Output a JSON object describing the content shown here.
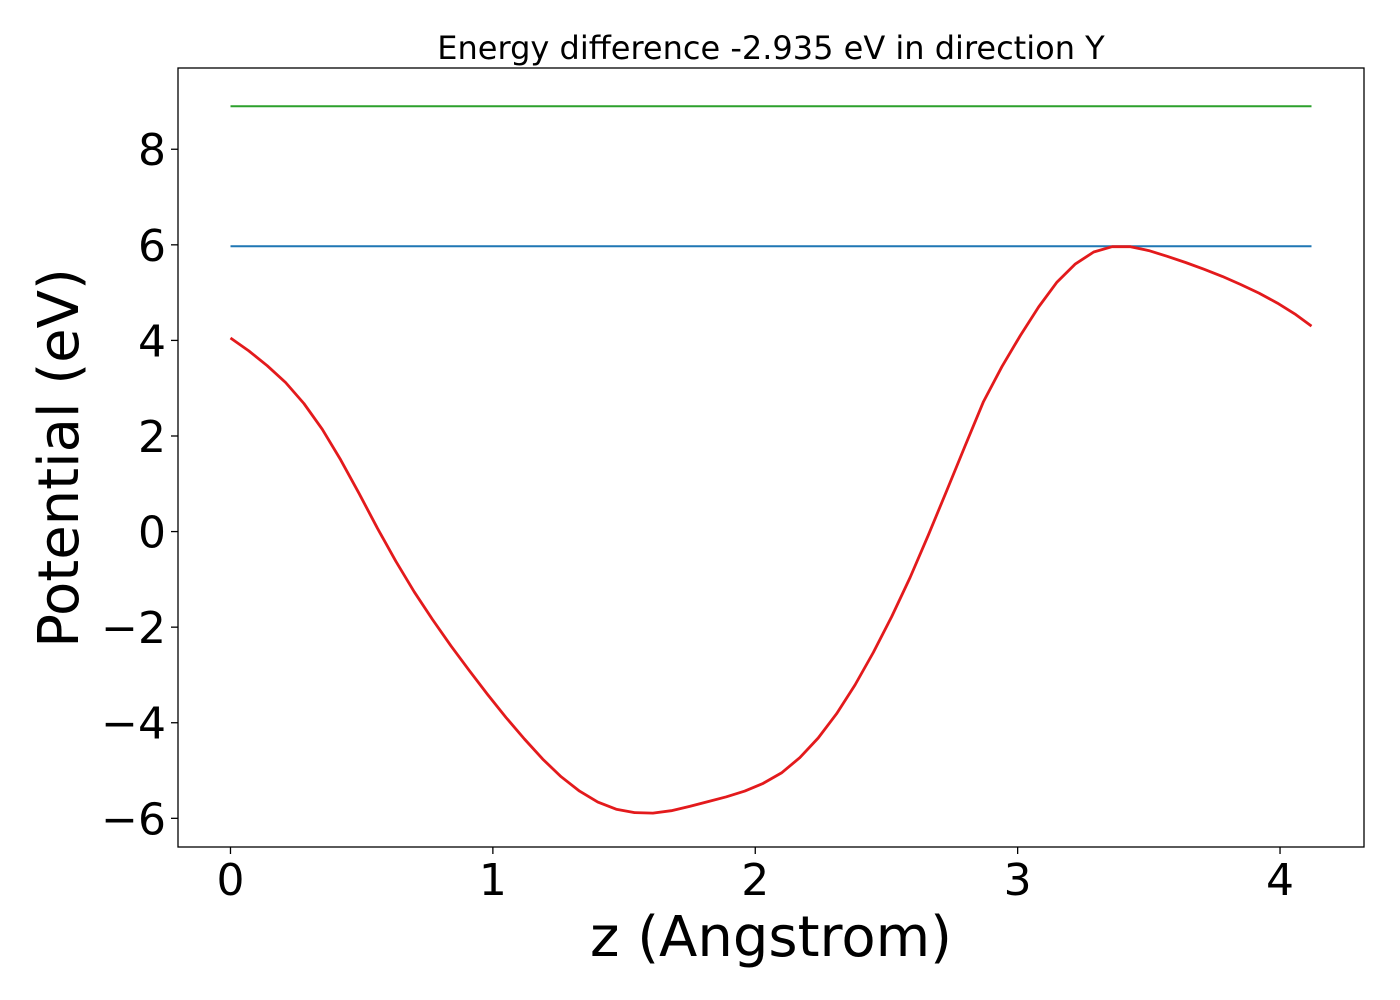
{
  "chart_data": {
    "type": "line",
    "title": "Energy difference -2.935 eV in direction Y",
    "xlabel": "z (Angstrom)",
    "ylabel": "Potential (eV)",
    "xlim": [
      -0.2,
      4.32
    ],
    "ylim": [
      -6.6,
      9.7
    ],
    "x_ticks": [
      0,
      1,
      2,
      3,
      4
    ],
    "x_tick_labels": [
      "0",
      "1",
      "2",
      "3",
      "4"
    ],
    "y_ticks": [
      -6,
      -4,
      -2,
      0,
      2,
      4,
      6,
      8
    ],
    "y_tick_labels": [
      "−6",
      "−4",
      "−2",
      "0",
      "2",
      "4",
      "6",
      "8"
    ],
    "grid": false,
    "series": [
      {
        "color": "#2ca02c",
        "x": [
          0,
          4.12
        ],
        "y": [
          8.9,
          8.9
        ]
      },
      {
        "color": "#1f77b4",
        "x": [
          0,
          4.12
        ],
        "y": [
          5.97,
          5.97
        ]
      },
      {
        "color": "#e31a1c",
        "x": [
          0,
          0.07,
          0.14,
          0.21,
          0.28,
          0.35,
          0.42,
          0.49,
          0.56,
          0.63,
          0.7,
          0.77,
          0.84,
          0.91,
          0.98,
          1.05,
          1.12,
          1.19,
          1.26,
          1.33,
          1.4,
          1.47,
          1.54,
          1.61,
          1.68,
          1.75,
          1.82,
          1.89,
          1.96,
          2.03,
          2.1,
          2.17,
          2.24,
          2.31,
          2.38,
          2.45,
          2.52,
          2.59,
          2.66,
          2.73,
          2.8,
          2.87,
          2.94,
          3.01,
          3.08,
          3.15,
          3.22,
          3.29,
          3.36,
          3.43,
          3.5,
          3.57,
          3.64,
          3.71,
          3.78,
          3.85,
          3.92,
          3.99,
          4.06,
          4.12
        ],
        "y": [
          4.05,
          3.78,
          3.47,
          3.12,
          2.68,
          2.14,
          1.5,
          0.8,
          0.07,
          -0.62,
          -1.26,
          -1.84,
          -2.39,
          -2.91,
          -3.41,
          -3.89,
          -4.34,
          -4.76,
          -5.13,
          -5.43,
          -5.66,
          -5.81,
          -5.88,
          -5.89,
          -5.84,
          -5.75,
          -5.65,
          -5.55,
          -5.43,
          -5.27,
          -5.05,
          -4.73,
          -4.32,
          -3.81,
          -3.21,
          -2.53,
          -1.78,
          -0.96,
          -0.07,
          0.86,
          1.8,
          2.72,
          3.45,
          4.1,
          4.7,
          5.22,
          5.6,
          5.85,
          5.96,
          5.96,
          5.88,
          5.76,
          5.63,
          5.49,
          5.34,
          5.17,
          4.99,
          4.78,
          4.54,
          4.3
        ]
      }
    ]
  }
}
